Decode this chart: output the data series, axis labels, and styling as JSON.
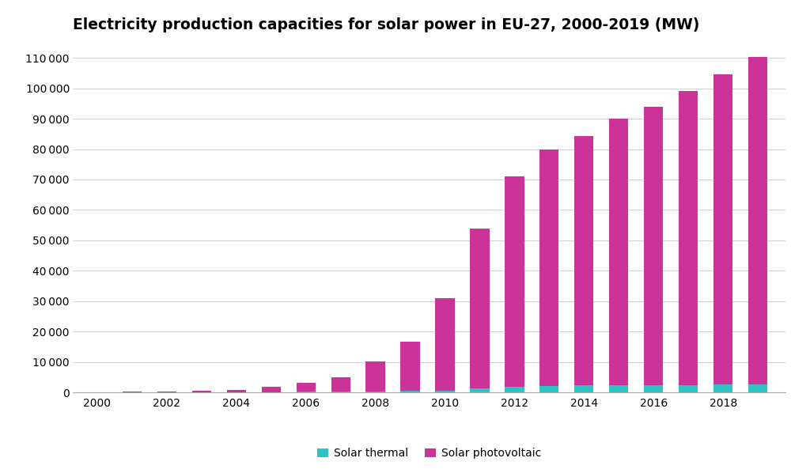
{
  "title": "Electricity production capacities for solar power in EU-27, 2000-2019 (MW)",
  "years": [
    2000,
    2001,
    2002,
    2003,
    2004,
    2005,
    2006,
    2007,
    2008,
    2009,
    2010,
    2011,
    2012,
    2013,
    2014,
    2015,
    2016,
    2017,
    2018,
    2019
  ],
  "solar_thermal": [
    50,
    60,
    70,
    100,
    150,
    200,
    300,
    350,
    400,
    500,
    600,
    1400,
    2000,
    2200,
    2400,
    2400,
    2500,
    2500,
    2600,
    2700
  ],
  "solar_pv": [
    150,
    200,
    250,
    450,
    800,
    1700,
    2800,
    4700,
    9800,
    16200,
    30400,
    52500,
    69000,
    77800,
    82000,
    87500,
    91500,
    96500,
    102000,
    107500
  ],
  "color_thermal": "#2ec4c4",
  "color_pv": "#cc3399",
  "background_color": "#ffffff",
  "ylim": [
    0,
    115000
  ],
  "yticks": [
    0,
    10000,
    20000,
    30000,
    40000,
    50000,
    60000,
    70000,
    80000,
    90000,
    100000,
    110000
  ],
  "xtick_years": [
    2000,
    2002,
    2004,
    2006,
    2008,
    2010,
    2012,
    2014,
    2016,
    2018
  ],
  "legend_labels": [
    "Solar thermal",
    "Solar photovoltaic"
  ],
  "grid_color": "#d0d0d0",
  "title_fontsize": 13.5,
  "tick_fontsize": 10,
  "legend_fontsize": 10,
  "bar_width": 0.55
}
